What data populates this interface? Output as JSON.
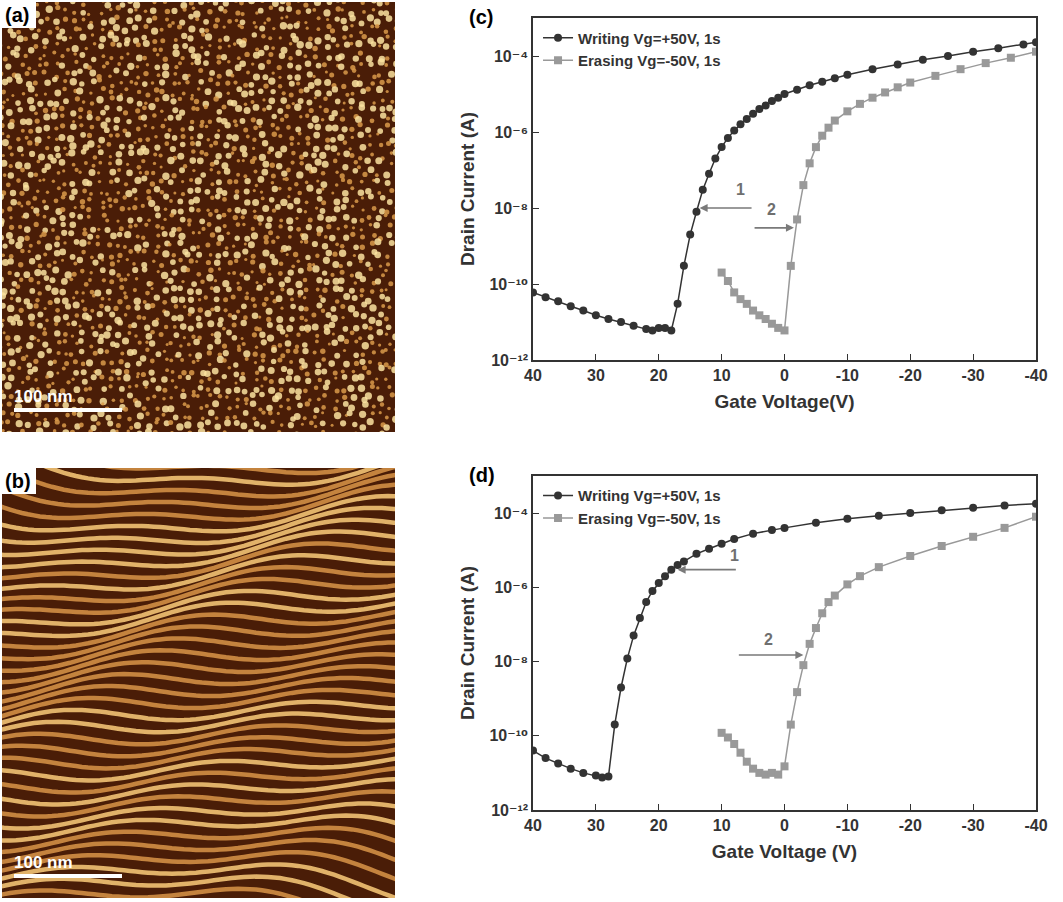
{
  "images": [
    {
      "letter": "(a)",
      "scale_bar": "100 nm"
    },
    {
      "letter": "(b)",
      "scale_bar": "100 nm"
    }
  ],
  "chart_data": [
    {
      "type": "line",
      "panel_label": "(c)",
      "x_label": "Gate Voltage(V)",
      "y_label": "Drain Current (A)",
      "log": "y",
      "grid": false,
      "legend": "upper left",
      "xlim": [
        40,
        -40
      ],
      "xticks": [
        40,
        30,
        20,
        10,
        0,
        -10,
        -20,
        -30,
        -40
      ],
      "ylim": [
        1e-12,
        0.001
      ],
      "yticks": [
        {
          "value": 1e-12,
          "label": "10⁻¹²"
        },
        {
          "value": 1e-10,
          "label": "10⁻¹⁰"
        },
        {
          "value": 1e-08,
          "label": "10⁻⁸"
        },
        {
          "value": 1e-06,
          "label": "10⁻⁶"
        },
        {
          "value": 0.0001,
          "label": "10⁻⁴"
        }
      ],
      "series": [
        {
          "name": "Writing Vg=+50V, 1s",
          "color": "#333333",
          "marker": "circle",
          "line_style": "solid",
          "x": [
            40,
            38,
            36,
            34,
            32,
            30,
            28,
            26,
            24,
            22,
            21,
            20,
            19,
            18,
            17,
            16,
            15,
            14,
            13,
            12,
            11,
            10,
            9,
            8,
            7,
            6,
            5,
            4,
            3,
            2,
            1,
            0,
            -2,
            -4,
            -6,
            -8,
            -10,
            -14,
            -18,
            -22,
            -26,
            -30,
            -34,
            -38,
            -40
          ],
          "values": [
            6e-11,
            4.5e-11,
            3.5e-11,
            2.6e-11,
            2e-11,
            1.5e-11,
            1.2e-11,
            1e-11,
            8e-12,
            6.5e-12,
            6e-12,
            7e-12,
            7e-12,
            6e-12,
            3e-11,
            3e-10,
            2e-09,
            8e-09,
            3e-08,
            8e-08,
            2e-07,
            4e-07,
            7e-07,
            1.1e-06,
            1.6e-06,
            2.2e-06,
            3e-06,
            4e-06,
            5e-06,
            6.5e-06,
            8e-06,
            1e-05,
            1.3e-05,
            1.7e-05,
            2.1e-05,
            2.6e-05,
            3.2e-05,
            4.5e-05,
            6e-05,
            8e-05,
            0.0001,
            0.00013,
            0.00016,
            0.0002,
            0.00023
          ]
        },
        {
          "name": "Erasing Vg=-50V, 1s",
          "color": "#999999",
          "marker": "square",
          "line_style": "solid",
          "x": [
            10,
            9,
            8,
            7,
            6,
            5,
            4,
            3,
            2,
            1,
            0,
            -1,
            -2,
            -3,
            -4,
            -5,
            -6,
            -7,
            -8,
            -10,
            -12,
            -14,
            -16,
            -18,
            -20,
            -24,
            -28,
            -32,
            -36,
            -40
          ],
          "values": [
            2e-10,
            1.2e-10,
            6e-11,
            4e-11,
            3e-11,
            2e-11,
            1.5e-11,
            1.2e-11,
            9e-12,
            7e-12,
            6e-12,
            3e-10,
            5e-09,
            4e-08,
            1.5e-07,
            4e-07,
            8e-07,
            1.3e-06,
            2e-06,
            3.5e-06,
            5.5e-06,
            8e-06,
            1.1e-05,
            1.5e-05,
            2e-05,
            3e-05,
            4.5e-05,
            6.5e-05,
            9e-05,
            0.00013
          ]
        }
      ],
      "annotations": [
        {
          "text": "1",
          "x": 7,
          "y": 3e-08,
          "arrow_x": [
            5,
            13.5
          ],
          "arrow_y": 1e-08
        },
        {
          "text": "2",
          "x": 2,
          "y": 9e-09,
          "arrow_x": [
            5,
            -1.5
          ],
          "arrow_y": 3e-09
        }
      ]
    },
    {
      "type": "line",
      "panel_label": "(d)",
      "x_label": "Gate Voltage (V)",
      "y_label": "Drain Current (A)",
      "log": "y",
      "grid": false,
      "legend": "upper left",
      "xlim": [
        40,
        -40
      ],
      "xticks": [
        40,
        30,
        20,
        10,
        0,
        -10,
        -20,
        -30,
        -40
      ],
      "ylim": [
        1e-12,
        0.001
      ],
      "yticks": [
        {
          "value": 1e-12,
          "label": "10⁻¹²"
        },
        {
          "value": 1e-10,
          "label": "10⁻¹⁰"
        },
        {
          "value": 1e-08,
          "label": "10⁻⁸"
        },
        {
          "value": 1e-06,
          "label": "10⁻⁶"
        },
        {
          "value": 0.0001,
          "label": "10⁻⁴"
        }
      ],
      "series": [
        {
          "name": "Writing Vg=+50V, 1s",
          "color": "#333333",
          "marker": "circle",
          "line_style": "solid",
          "x": [
            40,
            38,
            36,
            34,
            32,
            30,
            29,
            28,
            27,
            26,
            25,
            24,
            23,
            22,
            21,
            20,
            19,
            18,
            17,
            16,
            14,
            12,
            10,
            8,
            5,
            2,
            0,
            -5,
            -10,
            -15,
            -20,
            -25,
            -30,
            -35,
            -40
          ],
          "values": [
            4e-11,
            2.5e-11,
            1.8e-11,
            1.3e-11,
            1e-11,
            8.5e-12,
            7.5e-12,
            8e-12,
            2e-10,
            2e-09,
            1.2e-08,
            5e-08,
            1.5e-07,
            4e-07,
            8e-07,
            1.3e-06,
            2e-06,
            3e-06,
            4e-06,
            5e-06,
            8e-06,
            1.1e-05,
            1.5e-05,
            2e-05,
            2.8e-05,
            3.5e-05,
            4e-05,
            5.5e-05,
            7e-05,
            8.5e-05,
            0.0001,
            0.00012,
            0.00014,
            0.00016,
            0.00018
          ]
        },
        {
          "name": "Erasing Vg=-50V, 1s",
          "color": "#999999",
          "marker": "square",
          "line_style": "solid",
          "x": [
            10,
            9,
            8,
            7,
            6,
            5,
            4,
            3,
            2,
            1,
            0,
            -1,
            -2,
            -3,
            -4,
            -5,
            -6,
            -7,
            -8,
            -10,
            -12,
            -15,
            -20,
            -25,
            -30,
            -35,
            -40
          ],
          "values": [
            1.2e-10,
            9e-11,
            6e-11,
            3.5e-11,
            2e-11,
            1.3e-11,
            1e-11,
            9e-12,
            1e-11,
            9e-12,
            1.5e-11,
            2e-10,
            1.5e-09,
            8e-09,
            3e-08,
            8e-08,
            2e-07,
            4e-07,
            6e-07,
            1.2e-06,
            2e-06,
            3.5e-06,
            7e-06,
            1.3e-05,
            2.3e-05,
            4e-05,
            8e-05
          ]
        }
      ],
      "annotations": [
        {
          "text": "1",
          "x": 8,
          "y": 7e-06,
          "arrow_x": [
            7.5,
            17
          ],
          "arrow_y": 3e-06
        },
        {
          "text": "2",
          "x": 2.5,
          "y": 4e-08,
          "arrow_x": [
            7.5,
            -3
          ],
          "arrow_y": 1.5e-08
        }
      ]
    }
  ]
}
